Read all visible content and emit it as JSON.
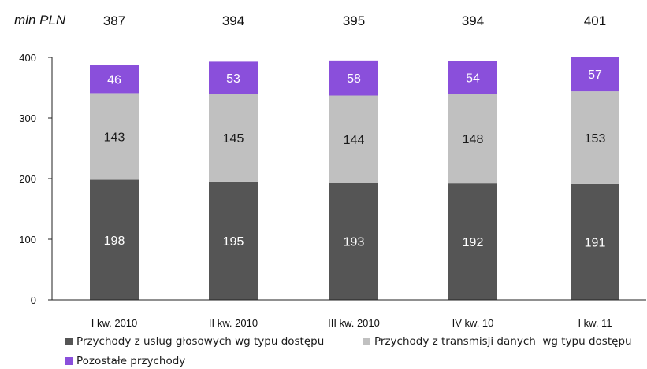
{
  "chart_data": {
    "type": "bar",
    "stacked": true,
    "unit_label": "mln PLN",
    "categories": [
      "I kw. 2010",
      "II kw. 2010",
      "III kw. 2010",
      "IV kw. 10",
      "I kw. 11"
    ],
    "totals": [
      387,
      394,
      395,
      394,
      401
    ],
    "series": [
      {
        "name": "Przychody z usług głosowych wg typu dostępu",
        "color": "#555555",
        "label_color": "#ffffff",
        "values": [
          198,
          195,
          193,
          192,
          191
        ]
      },
      {
        "name": "Przychody z transmisji danych  wg typu dostępu",
        "color": "#c0c0c0",
        "label_color": "#1a1a1a",
        "values": [
          143,
          145,
          144,
          148,
          153
        ]
      },
      {
        "name": "Pozostałe przychody",
        "color": "#8a4fdb",
        "label_color": "#ffffff",
        "values": [
          46,
          53,
          58,
          54,
          57
        ]
      }
    ],
    "y_ticks": [
      "0",
      "100",
      "200",
      "300",
      "400"
    ],
    "ylim": [
      0,
      400
    ],
    "grid": false,
    "legend_position": "bottom"
  }
}
